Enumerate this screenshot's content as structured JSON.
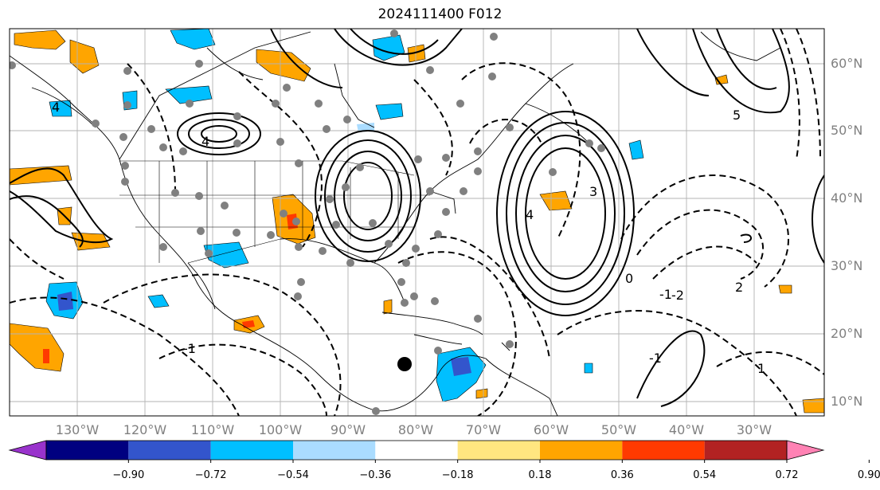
{
  "title": "2024111400 F012",
  "lon_labels": [
    "130°W",
    "120°W",
    "110°W",
    "100°W",
    "90°W",
    "80°W",
    "70°W",
    "60°W",
    "50°W",
    "40°W",
    "30°W"
  ],
  "lat_labels": [
    "60°N",
    "50°N",
    "40°N",
    "30°N",
    "20°N",
    "10°N"
  ],
  "colorbar": {
    "ticks": [
      "−0.90",
      "−0.72",
      "−0.54",
      "−0.36",
      "−0.18",
      "0.18",
      "0.36",
      "0.54",
      "0.72",
      "0.90"
    ],
    "colors": [
      "#9933cc",
      "#000080",
      "#3355cc",
      "#00bfff",
      "#aadcff",
      "#ffffff",
      "#ffe680",
      "#ffa500",
      "#ff3a00",
      "#b22222",
      "#ff82b4"
    ]
  },
  "contour_labels": [
    "4",
    "4",
    "0",
    "-1",
    "2",
    "-2",
    "-1",
    "1",
    "-1",
    "5",
    "3",
    "4"
  ],
  "storm_marker": {
    "lon": -80.5,
    "lat": 15.5
  }
}
